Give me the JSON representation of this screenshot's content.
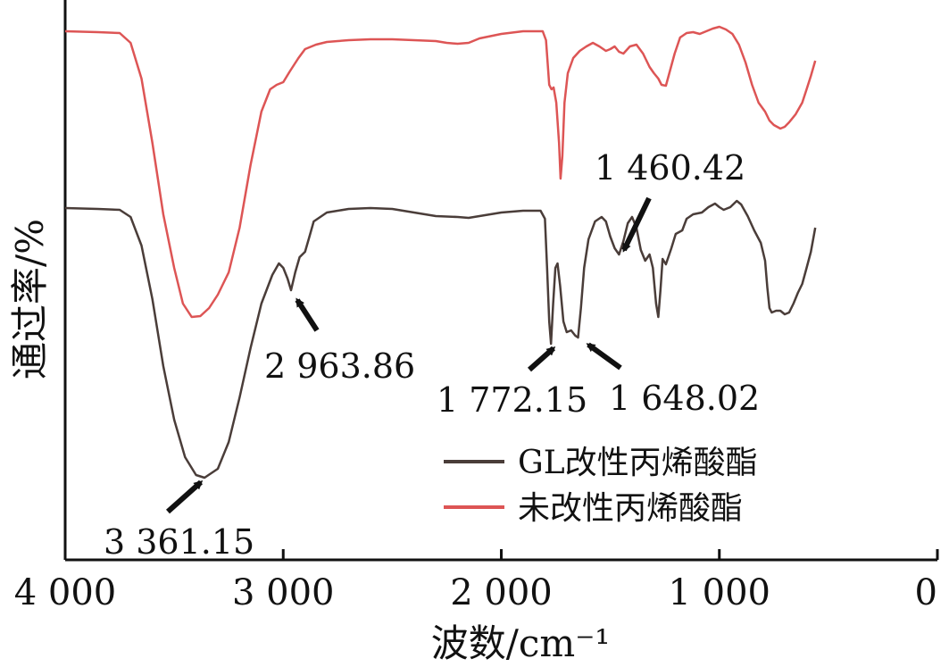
{
  "chart_data": {
    "type": "line",
    "xlabel": "波数/cm⁻¹",
    "ylabel": "通过率/%",
    "xlim": [
      4000,
      0
    ],
    "x_reversed": true,
    "y_ticks_shown": false,
    "xticks": [
      {
        "value": 4000,
        "label": "4 000"
      },
      {
        "value": 3000,
        "label": "3 000"
      },
      {
        "value": 2000,
        "label": "2 000"
      },
      {
        "value": 1000,
        "label": "1 000"
      },
      {
        "value": 0,
        "label": "0"
      }
    ],
    "legend_position": "bottom-right",
    "series": [
      {
        "name": "GL改性丙烯酸酯",
        "color": "#4a3d39",
        "points": [
          [
            4000,
            233
          ],
          [
            3850,
            234
          ],
          [
            3750,
            235
          ],
          [
            3700,
            243
          ],
          [
            3650,
            275
          ],
          [
            3600,
            335
          ],
          [
            3550,
            410
          ],
          [
            3500,
            470
          ],
          [
            3450,
            512
          ],
          [
            3400,
            532
          ],
          [
            3361,
            535
          ],
          [
            3300,
            525
          ],
          [
            3250,
            495
          ],
          [
            3200,
            445
          ],
          [
            3150,
            390
          ],
          [
            3100,
            340
          ],
          [
            3050,
            308
          ],
          [
            3020,
            295
          ],
          [
            3000,
            300
          ],
          [
            2980,
            312
          ],
          [
            2964,
            325
          ],
          [
            2945,
            305
          ],
          [
            2925,
            288
          ],
          [
            2900,
            282
          ],
          [
            2880,
            265
          ],
          [
            2860,
            248
          ],
          [
            2800,
            238
          ],
          [
            2700,
            234
          ],
          [
            2600,
            233
          ],
          [
            2500,
            234
          ],
          [
            2400,
            238
          ],
          [
            2300,
            242
          ],
          [
            2200,
            243
          ],
          [
            2150,
            244
          ],
          [
            2100,
            242
          ],
          [
            2000,
            238
          ],
          [
            1900,
            236
          ],
          [
            1820,
            236
          ],
          [
            1800,
            245
          ],
          [
            1790,
            300
          ],
          [
            1780,
            360
          ],
          [
            1772,
            385
          ],
          [
            1762,
            340
          ],
          [
            1752,
            300
          ],
          [
            1742,
            295
          ],
          [
            1730,
            320
          ],
          [
            1715,
            360
          ],
          [
            1700,
            372
          ],
          [
            1680,
            370
          ],
          [
            1660,
            376
          ],
          [
            1648,
            378
          ],
          [
            1635,
            345
          ],
          [
            1620,
            300
          ],
          [
            1600,
            268
          ],
          [
            1570,
            248
          ],
          [
            1540,
            243
          ],
          [
            1520,
            248
          ],
          [
            1500,
            265
          ],
          [
            1480,
            278
          ],
          [
            1460,
            285
          ],
          [
            1440,
            270
          ],
          [
            1420,
            250
          ],
          [
            1400,
            243
          ],
          [
            1380,
            255
          ],
          [
            1360,
            280
          ],
          [
            1340,
            292
          ],
          [
            1320,
            285
          ],
          [
            1305,
            300
          ],
          [
            1290,
            340
          ],
          [
            1280,
            355
          ],
          [
            1270,
            325
          ],
          [
            1260,
            290
          ],
          [
            1245,
            296
          ],
          [
            1220,
            278
          ],
          [
            1200,
            262
          ],
          [
            1170,
            258
          ],
          [
            1150,
            245
          ],
          [
            1120,
            240
          ],
          [
            1080,
            238
          ],
          [
            1050,
            232
          ],
          [
            1020,
            228
          ],
          [
            1000,
            232
          ],
          [
            980,
            235
          ],
          [
            950,
            232
          ],
          [
            920,
            225
          ],
          [
            900,
            229
          ],
          [
            870,
            242
          ],
          [
            840,
            258
          ],
          [
            810,
            272
          ],
          [
            790,
            292
          ],
          [
            780,
            322
          ],
          [
            770,
            345
          ],
          [
            760,
            350
          ],
          [
            740,
            348
          ],
          [
            720,
            348
          ],
          [
            700,
            352
          ],
          [
            680,
            350
          ],
          [
            660,
            340
          ],
          [
            640,
            328
          ],
          [
            620,
            318
          ],
          [
            600,
            300
          ],
          [
            580,
            282
          ],
          [
            560,
            255
          ]
        ]
      },
      {
        "name": "未改性丙烯酸酯",
        "color": "#dd5555",
        "points": [
          [
            4000,
            35
          ],
          [
            3850,
            36
          ],
          [
            3750,
            37
          ],
          [
            3700,
            48
          ],
          [
            3650,
            88
          ],
          [
            3600,
            160
          ],
          [
            3550,
            240
          ],
          [
            3500,
            300
          ],
          [
            3460,
            340
          ],
          [
            3420,
            355
          ],
          [
            3380,
            354
          ],
          [
            3340,
            345
          ],
          [
            3300,
            330
          ],
          [
            3250,
            305
          ],
          [
            3200,
            255
          ],
          [
            3150,
            185
          ],
          [
            3100,
            125
          ],
          [
            3060,
            100
          ],
          [
            3030,
            95
          ],
          [
            3000,
            92
          ],
          [
            2970,
            80
          ],
          [
            2930,
            65
          ],
          [
            2900,
            55
          ],
          [
            2850,
            50
          ],
          [
            2800,
            47
          ],
          [
            2750,
            46
          ],
          [
            2700,
            45
          ],
          [
            2600,
            44
          ],
          [
            2500,
            44
          ],
          [
            2400,
            45
          ],
          [
            2300,
            46
          ],
          [
            2250,
            48
          ],
          [
            2200,
            49
          ],
          [
            2150,
            48
          ],
          [
            2100,
            43
          ],
          [
            2000,
            38
          ],
          [
            1900,
            35
          ],
          [
            1810,
            35
          ],
          [
            1795,
            45
          ],
          [
            1780,
            95
          ],
          [
            1770,
            100
          ],
          [
            1760,
            98
          ],
          [
            1748,
            115
          ],
          [
            1735,
            160
          ],
          [
            1728,
            200
          ],
          [
            1720,
            175
          ],
          [
            1710,
            115
          ],
          [
            1695,
            82
          ],
          [
            1670,
            65
          ],
          [
            1640,
            57
          ],
          [
            1610,
            52
          ],
          [
            1580,
            48
          ],
          [
            1550,
            52
          ],
          [
            1520,
            57
          ],
          [
            1500,
            55
          ],
          [
            1480,
            52
          ],
          [
            1460,
            58
          ],
          [
            1440,
            60
          ],
          [
            1410,
            52
          ],
          [
            1380,
            50
          ],
          [
            1350,
            60
          ],
          [
            1320,
            75
          ],
          [
            1300,
            82
          ],
          [
            1280,
            88
          ],
          [
            1265,
            95
          ],
          [
            1245,
            96
          ],
          [
            1225,
            78
          ],
          [
            1205,
            60
          ],
          [
            1180,
            42
          ],
          [
            1150,
            37
          ],
          [
            1120,
            36
          ],
          [
            1090,
            38
          ],
          [
            1060,
            35
          ],
          [
            1030,
            32
          ],
          [
            1000,
            30
          ],
          [
            970,
            33
          ],
          [
            940,
            38
          ],
          [
            910,
            50
          ],
          [
            880,
            70
          ],
          [
            850,
            95
          ],
          [
            820,
            115
          ],
          [
            790,
            125
          ],
          [
            770,
            135
          ],
          [
            750,
            140
          ],
          [
            720,
            144
          ],
          [
            700,
            142
          ],
          [
            680,
            137
          ],
          [
            650,
            128
          ],
          [
            620,
            115
          ],
          [
            600,
            100
          ],
          [
            580,
            85
          ],
          [
            560,
            68
          ]
        ]
      }
    ],
    "annotations": [
      {
        "label": "3 361.15"
      },
      {
        "label": "2 963.86"
      },
      {
        "label": "1 772.15"
      },
      {
        "label": "1 648.02"
      },
      {
        "label": "1 460.42"
      }
    ]
  }
}
